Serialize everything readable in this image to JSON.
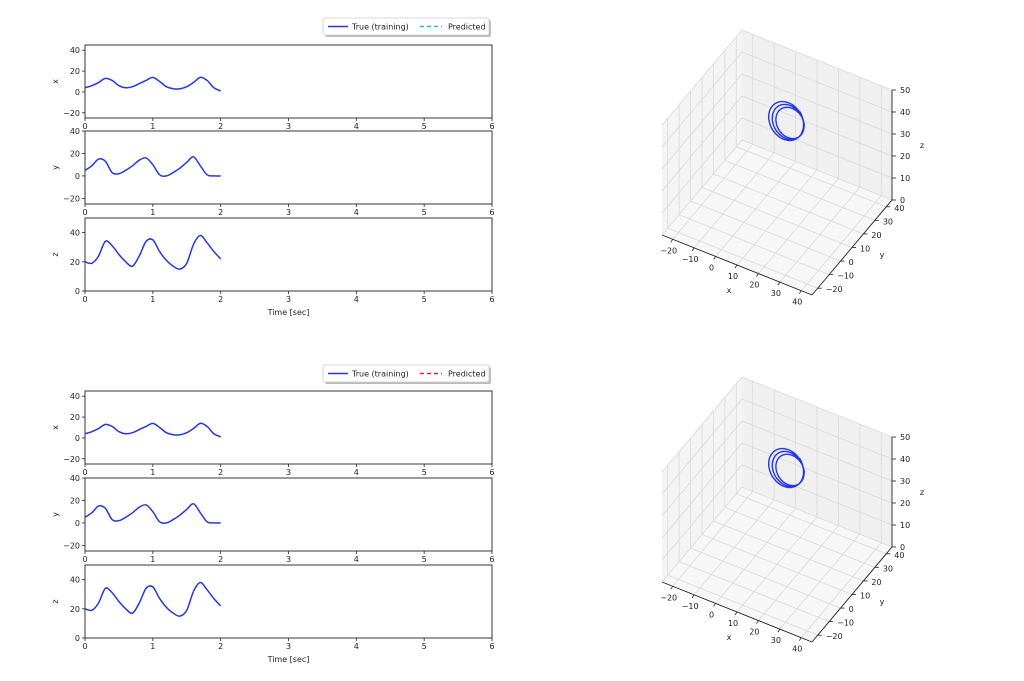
{
  "colors": {
    "true_line": "#2337e6",
    "pred_top": "#29b6e6",
    "pred_bottom": "#e6262b",
    "grid3d": "#d9d9d9",
    "axis": "#222222"
  },
  "figures": [
    {
      "legend": {
        "true_label": "True (training)",
        "pred_label": "Predicted",
        "pred_color_key": "pred_top"
      },
      "xlabel": "Time [sec]",
      "view3d": {
        "xlabel": "x",
        "ylabel": "y",
        "zlabel": "z"
      }
    },
    {
      "legend": {
        "true_label": "True (training)",
        "pred_label": "Predicted",
        "pred_color_key": "pred_bottom"
      },
      "xlabel": "Time [sec]",
      "view3d": {
        "xlabel": "x",
        "ylabel": "y",
        "zlabel": "z"
      }
    }
  ],
  "chart_data": [
    {
      "type": "line",
      "title": "",
      "xlabel": "Time [sec]",
      "xlim": [
        0,
        6
      ],
      "xticks": [
        0,
        1,
        2,
        3,
        4,
        5,
        6
      ],
      "legend_position": "top-right",
      "subplots": [
        {
          "ylabel": "x",
          "ylim": [
            -25,
            45
          ],
          "yticks": [
            -20,
            0,
            20,
            40
          ],
          "series": [
            {
              "name": "True (training)",
              "x": [
                0,
                0.1,
                0.2,
                0.3,
                0.4,
                0.5,
                0.6,
                0.7,
                0.8,
                0.9,
                1.0,
                1.1,
                1.2,
                1.3,
                1.4,
                1.5,
                1.6,
                1.7,
                1.8,
                1.9,
                2.0
              ],
              "y": [
                4,
                6,
                9,
                13,
                11,
                6,
                4,
                5,
                8,
                11,
                14,
                10,
                5,
                3,
                3,
                5,
                9,
                14,
                11,
                4,
                1
              ]
            }
          ]
        },
        {
          "ylabel": "y",
          "ylim": [
            -25,
            40
          ],
          "yticks": [
            -20,
            0,
            20,
            40
          ],
          "series": [
            {
              "name": "True (training)",
              "x": [
                0,
                0.1,
                0.2,
                0.3,
                0.4,
                0.5,
                0.6,
                0.7,
                0.8,
                0.9,
                1.0,
                1.1,
                1.2,
                1.3,
                1.4,
                1.5,
                1.6,
                1.7,
                1.8,
                1.9,
                2.0
              ],
              "y": [
                5,
                9,
                15,
                13,
                3,
                2,
                5,
                9,
                14,
                16,
                10,
                1,
                0,
                3,
                7,
                12,
                17,
                9,
                1,
                0,
                0
              ]
            }
          ]
        },
        {
          "ylabel": "z",
          "ylim": [
            0,
            50
          ],
          "yticks": [
            0,
            20,
            40
          ],
          "series": [
            {
              "name": "True (training)",
              "x": [
                0,
                0.1,
                0.2,
                0.3,
                0.4,
                0.5,
                0.6,
                0.7,
                0.8,
                0.9,
                1.0,
                1.1,
                1.2,
                1.3,
                1.4,
                1.5,
                1.6,
                1.7,
                1.8,
                1.9,
                2.0
              ],
              "y": [
                20,
                19,
                24,
                34,
                31,
                25,
                20,
                17,
                24,
                34,
                35,
                27,
                21,
                17,
                15,
                19,
                32,
                38,
                33,
                27,
                22
              ]
            }
          ]
        }
      ]
    },
    {
      "type": "line",
      "title": "",
      "xlabel": "Time [sec]",
      "xlim": [
        0,
        6
      ],
      "xticks": [
        0,
        1,
        2,
        3,
        4,
        5,
        6
      ],
      "legend_position": "top-right",
      "subplots": [
        {
          "ylabel": "x",
          "ylim": [
            -25,
            45
          ],
          "yticks": [
            -20,
            0,
            20,
            40
          ],
          "series": [
            {
              "name": "True (training)",
              "x": [
                0,
                0.1,
                0.2,
                0.3,
                0.4,
                0.5,
                0.6,
                0.7,
                0.8,
                0.9,
                1.0,
                1.1,
                1.2,
                1.3,
                1.4,
                1.5,
                1.6,
                1.7,
                1.8,
                1.9,
                2.0
              ],
              "y": [
                4,
                6,
                9,
                13,
                11,
                6,
                4,
                5,
                8,
                11,
                14,
                10,
                5,
                3,
                3,
                5,
                9,
                14,
                11,
                4,
                1
              ]
            }
          ]
        },
        {
          "ylabel": "y",
          "ylim": [
            -25,
            40
          ],
          "yticks": [
            -20,
            0,
            20,
            40
          ],
          "series": [
            {
              "name": "True (training)",
              "x": [
                0,
                0.1,
                0.2,
                0.3,
                0.4,
                0.5,
                0.6,
                0.7,
                0.8,
                0.9,
                1.0,
                1.1,
                1.2,
                1.3,
                1.4,
                1.5,
                1.6,
                1.7,
                1.8,
                1.9,
                2.0
              ],
              "y": [
                5,
                9,
                15,
                13,
                3,
                2,
                5,
                9,
                14,
                16,
                10,
                1,
                0,
                3,
                7,
                12,
                17,
                9,
                1,
                0,
                0
              ]
            }
          ]
        },
        {
          "ylabel": "z",
          "ylim": [
            0,
            50
          ],
          "yticks": [
            0,
            20,
            40
          ],
          "series": [
            {
              "name": "True (training)",
              "x": [
                0,
                0.1,
                0.2,
                0.3,
                0.4,
                0.5,
                0.6,
                0.7,
                0.8,
                0.9,
                1.0,
                1.1,
                1.2,
                1.3,
                1.4,
                1.5,
                1.6,
                1.7,
                1.8,
                1.9,
                2.0
              ],
              "y": [
                20,
                19,
                24,
                34,
                31,
                25,
                20,
                17,
                24,
                34,
                35,
                27,
                21,
                17,
                15,
                19,
                32,
                38,
                33,
                27,
                22
              ]
            }
          ]
        }
      ]
    },
    {
      "type": "line",
      "title": "",
      "projection": "3d",
      "xlabel": "x",
      "ylabel": "y",
      "zlabel": "z",
      "xlim": [
        -25,
        45
      ],
      "ylim": [
        -25,
        45
      ],
      "zlim": [
        0,
        50
      ],
      "xticks": [
        -20,
        -10,
        0,
        10,
        20,
        30,
        40
      ],
      "yticks": [
        -20,
        -10,
        0,
        10,
        20,
        30,
        40
      ],
      "zticks": [
        0,
        10,
        20,
        30,
        40,
        50
      ],
      "grid": true,
      "series": [
        {
          "name": "True (training)",
          "curve": "attractor-trajectory"
        }
      ]
    },
    {
      "type": "line",
      "title": "",
      "projection": "3d",
      "xlabel": "x",
      "ylabel": "y",
      "zlabel": "z",
      "xlim": [
        -25,
        45
      ],
      "ylim": [
        -25,
        45
      ],
      "zlim": [
        0,
        50
      ],
      "xticks": [
        -20,
        -10,
        0,
        10,
        20,
        30,
        40
      ],
      "yticks": [
        -20,
        -10,
        0,
        10,
        20,
        30,
        40
      ],
      "zticks": [
        0,
        10,
        20,
        30,
        40,
        50
      ],
      "grid": true,
      "series": [
        {
          "name": "True (training)",
          "curve": "attractor-trajectory"
        }
      ]
    }
  ]
}
